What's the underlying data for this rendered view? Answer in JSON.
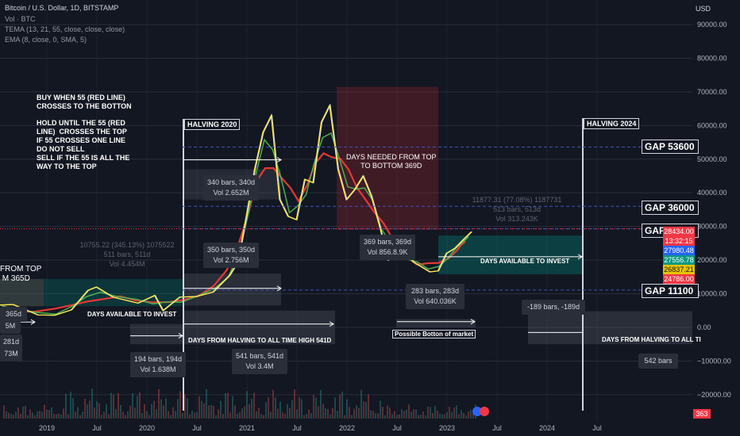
{
  "header": {
    "title": "Bitcoin / U.S. Dollar, 1D, BITSTAMP",
    "vol": "Vol · BTC",
    "tema": "TEMA (13, 21, 55, close, close, close)",
    "ema": "EMA (8, close, 0, SMA, 5)",
    "currency": "USD"
  },
  "colors": {
    "background": "#131722",
    "price": "#d1d4dc",
    "ema": "#e53935",
    "tema13": "#ffeb3b",
    "tema21": "#4caf50",
    "zoneRed": "#b22833",
    "zoneTeal": "#00897b",
    "grid": "#2a2e39"
  },
  "annotations": {
    "buy_rule": "BUY WHEN 55 (RED LINE)\nCROSSES TO THE BOTTON",
    "hold_rule": "HOLD UNTIL THE 55 (RED\nLINE)  CROSSES THE TOP\nIF 55 CROSSES ONE LINE\nDO NOT SELL\nSELL IF THE 55 IS ALL THE\nWAY TO THE TOP",
    "days_top_bottom": "DAYS NEEDED FROM TOP\nTO BOTTOM 369D",
    "days_invest": "DAYS AVAILABLE TO INVEST",
    "days_invest_2": "DAYS AVAILABLE TO INVEST",
    "days_halving_ath": "DAYS FROM HALVING TO ALL TIME HIGH 541D",
    "days_halving_ath_2": "DAYS FROM HALVING TO ALL TI",
    "possible_bottom": "Possible Botton of market",
    "from_top": "FROM TOP\n M 365D",
    "halving_2020": "HALVING 2020",
    "halving_2024": "HALVING 2024"
  },
  "boxes": {
    "b340": [
      "340 bars, 340d",
      "Vol 2.652M"
    ],
    "b350": [
      "350 bars, 350d",
      "Vol 2.756M"
    ],
    "b369": [
      "369 bars, 369d",
      "Vol 856.8.9K"
    ],
    "b283": [
      "283 bars, 283d",
      "Vol 640.036K"
    ],
    "b194": [
      "194 bars, 194d",
      "Vol 1.638M"
    ],
    "b541": [
      "541 bars, 541d",
      "Vol 3.4M"
    ],
    "bneg189": "-189 bars, -189d",
    "b542": "542 bars",
    "left_365": "365d",
    "left_5m": "5M",
    "left_281": "281d",
    "left_73m": "73M"
  },
  "dim_labels": {
    "left": "10755.22 (345.13%) 1075522\n511 bars, 511d\nVol 4.454M",
    "right": "11877.31 (77.08%) 1187731\n513 bars, 513d\nVol 313.243K"
  },
  "gaps": [
    "GAP 53600",
    "GAP 36000",
    "GAP 29300",
    "GAP 11100"
  ],
  "price_tags": [
    {
      "value": "28434.00",
      "color": "#f23645"
    },
    {
      "value": "13:32:15",
      "color": "#f23645"
    },
    {
      "value": "27980.48",
      "color": "#2962ff"
    },
    {
      "value": "27556.78",
      "color": "#089981"
    },
    {
      "value": "26837.21",
      "color": "#e6c300"
    },
    {
      "value": "24786.00",
      "color": "#f23645"
    }
  ],
  "bottom_tag": "363",
  "chart_data": {
    "type": "line",
    "title": "Bitcoin / U.S. Dollar, 1D, BITSTAMP",
    "xlabel": "",
    "ylabel": "USD",
    "ylim": [
      -25000,
      95000
    ],
    "yticks": [
      "90000.00",
      "80000.00",
      "70000.00",
      "60000.00",
      "50000.00",
      "40000.00",
      "30000.00",
      "20000.00",
      "10000.00",
      "0.00",
      "−10000.00",
      "−20000.00"
    ],
    "xticks": [
      "2019",
      "Jul",
      "2020",
      "Jul",
      "2021",
      "Jul",
      "2022",
      "Jul",
      "2023",
      "Jul",
      "2024",
      "Jul"
    ],
    "grid": true,
    "series": [
      {
        "name": "Bitcoin / U.S. Dollar",
        "x": [
          "2018-06",
          "2018-09",
          "2018-12",
          "2019-02",
          "2019-04",
          "2019-06",
          "2019-07",
          "2019-09",
          "2019-12",
          "2020-02",
          "2020-03",
          "2020-05",
          "2020-07",
          "2020-09",
          "2020-11",
          "2020-12",
          "2021-01",
          "2021-02",
          "2021-03",
          "2021-04",
          "2021-05",
          "2021-06",
          "2021-07",
          "2021-08",
          "2021-09",
          "2021-10",
          "2021-11",
          "2021-12",
          "2022-01",
          "2022-02",
          "2022-03",
          "2022-04",
          "2022-05",
          "2022-06",
          "2022-08",
          "2022-09",
          "2022-11",
          "2022-12",
          "2023-01",
          "2023-02",
          "2023-03",
          "2023-04"
        ],
        "values": [
          6500,
          6800,
          3700,
          3600,
          5200,
          11000,
          12000,
          9000,
          7200,
          9500,
          5000,
          9000,
          9200,
          10500,
          15500,
          19500,
          33000,
          47000,
          58000,
          63000,
          38000,
          33000,
          32000,
          44000,
          43000,
          61000,
          66000,
          47000,
          38000,
          41000,
          45000,
          39000,
          30000,
          20000,
          23000,
          19500,
          16500,
          16800,
          22000,
          23500,
          26000,
          28434
        ]
      }
    ]
  }
}
